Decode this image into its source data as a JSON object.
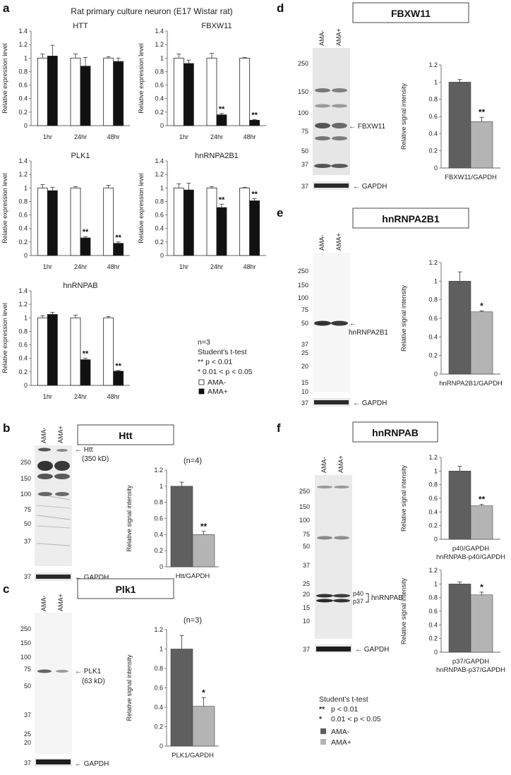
{
  "figure": {
    "panel_a_letter": "a",
    "panel_b_letter": "b",
    "panel_c_letter": "c",
    "panel_d_letter": "d",
    "panel_e_letter": "e",
    "panel_f_letter": "f",
    "panel_a_header": "Rat primary culture neuron (E17 Wistar rat)"
  },
  "legend_a": {
    "n": "n=3",
    "test": "Student's t-test",
    "sig1": "** p < 0.01",
    "sig2": "* 0.01 < p < 0.05",
    "minus": "AMA-",
    "plus": "AMA+"
  },
  "legend_f": {
    "test": "Student's t-test",
    "sig1_mark": "**",
    "sig1": "p < 0.01",
    "sig2_mark": "*",
    "sig2": "0.01 < p < 0.05",
    "minus": "AMA-",
    "plus": "AMA+"
  },
  "blots": {
    "b": {
      "title": "Htt",
      "lanes": [
        "AMA-",
        "AMA+"
      ],
      "markers": [
        "250",
        "150",
        "100",
        "75",
        "50",
        "37"
      ],
      "gapdh_marker": "37",
      "band_label": "Htt",
      "band_sub": "(350 kD)",
      "gapdh": "GAPDH"
    },
    "c": {
      "title": "Plk1",
      "lanes": [
        "AMA-",
        "AMA+"
      ],
      "markers": [
        "250",
        "150",
        "100",
        "75",
        "50",
        "37",
        "25",
        "20"
      ],
      "gapdh_marker": "37",
      "band_label": "PLK1",
      "band_sub": "(63 kD)",
      "gapdh": "GAPDH"
    },
    "d": {
      "title": "FBXW11",
      "lanes": [
        "AMA-",
        "AMA+"
      ],
      "markers": [
        "250",
        "150",
        "100",
        "75",
        "50",
        "37"
      ],
      "gapdh_marker": "37",
      "band_label": "FBXW11",
      "gapdh": "GAPDH"
    },
    "e": {
      "title": "hnRNPA2B1",
      "lanes": [
        "AMA-",
        "AMA+"
      ],
      "markers": [
        "250",
        "150",
        "100",
        "75",
        "50",
        "37",
        "25",
        "20",
        "15",
        "10"
      ],
      "gapdh_marker": "37",
      "band_label": "hnRNPA2B1",
      "gapdh": "GAPDH"
    },
    "f": {
      "title": "hnRNPAB",
      "lanes": [
        "AMA-",
        "AMA+"
      ],
      "markers": [
        "250",
        "150",
        "100",
        "75",
        "50",
        "37",
        "25",
        "20",
        "15",
        "10"
      ],
      "gapdh_marker": "37",
      "band_label": "hnRNPAB",
      "p40": "p40",
      "p37": "p37",
      "gapdh": "GAPDH"
    }
  },
  "chart_data": [
    {
      "id": "a-htt",
      "type": "bar",
      "title": "HTT",
      "ylabel": "Relative expression level",
      "ylim": [
        0,
        1.4
      ],
      "yticks": [
        "0",
        "0.2",
        "0.4",
        "0.6",
        "0.8",
        "1",
        "1.2",
        "1.4"
      ],
      "categories": [
        "1hr",
        "24hr",
        "48hr"
      ],
      "series": [
        {
          "name": "AMA-",
          "values": [
            1.0,
            1.0,
            1.0
          ],
          "errors": [
            0.06,
            0.06,
            0.02
          ]
        },
        {
          "name": "AMA+",
          "values": [
            1.03,
            0.88,
            0.95
          ],
          "errors": [
            0.16,
            0.13,
            0.05
          ]
        }
      ],
      "significance": [
        "",
        "",
        ""
      ]
    },
    {
      "id": "a-fbxw11",
      "type": "bar",
      "title": "FBXW11",
      "ylabel": "Relative expression level",
      "ylim": [
        0,
        1.4
      ],
      "yticks": [
        "0",
        "0.2",
        "0.4",
        "0.6",
        "0.8",
        "1",
        "1.2",
        "1.4"
      ],
      "categories": [
        "1hr",
        "24hr",
        "48hr"
      ],
      "series": [
        {
          "name": "AMA-",
          "values": [
            1.0,
            1.0,
            1.0
          ],
          "errors": [
            0.06,
            0.07,
            0.01
          ]
        },
        {
          "name": "AMA+",
          "values": [
            0.92,
            0.16,
            0.08
          ],
          "errors": [
            0.05,
            0.02,
            0.01
          ]
        }
      ],
      "significance": [
        "",
        "**",
        "**"
      ]
    },
    {
      "id": "a-plk1",
      "type": "bar",
      "title": "PLK1",
      "ylabel": "Relative expression level",
      "ylim": [
        0,
        1.4
      ],
      "yticks": [
        "0",
        "0.2",
        "0.4",
        "0.6",
        "0.8",
        "1",
        "1.2",
        "1.4"
      ],
      "categories": [
        "1hr",
        "24hr",
        "48hr"
      ],
      "series": [
        {
          "name": "AMA-",
          "values": [
            1.0,
            1.0,
            1.0
          ],
          "errors": [
            0.05,
            0.02,
            0.04
          ]
        },
        {
          "name": "AMA+",
          "values": [
            0.96,
            0.26,
            0.18
          ],
          "errors": [
            0.05,
            0.02,
            0.02
          ]
        }
      ],
      "significance": [
        "",
        "**",
        "**"
      ]
    },
    {
      "id": "a-hnrnpa2b1",
      "type": "bar",
      "title": "hnRNPA2B1",
      "ylabel": "Relative expression level",
      "ylim": [
        0,
        1.4
      ],
      "yticks": [
        "0",
        "0.2",
        "0.4",
        "0.6",
        "0.8",
        "1",
        "1.2",
        "1.4"
      ],
      "categories": [
        "1hr",
        "24hr",
        "48hr"
      ],
      "series": [
        {
          "name": "AMA-",
          "values": [
            1.0,
            1.0,
            1.0
          ],
          "errors": [
            0.06,
            0.02,
            0.01
          ]
        },
        {
          "name": "AMA+",
          "values": [
            0.97,
            0.71,
            0.81
          ],
          "errors": [
            0.1,
            0.05,
            0.03
          ]
        }
      ],
      "significance": [
        "",
        "**",
        "**"
      ]
    },
    {
      "id": "a-hnrnpab",
      "type": "bar",
      "title": "hnRNPAB",
      "ylabel": "Relative expression level",
      "ylim": [
        0,
        1.4
      ],
      "yticks": [
        "0",
        "0.2",
        "0.4",
        "0.6",
        "0.8",
        "1",
        "1.2",
        "1.4"
      ],
      "categories": [
        "1hr",
        "24hr",
        "48hr"
      ],
      "series": [
        {
          "name": "AMA-",
          "values": [
            1.0,
            1.0,
            1.0
          ],
          "errors": [
            0.03,
            0.04,
            0.02
          ]
        },
        {
          "name": "AMA+",
          "values": [
            1.05,
            0.38,
            0.21
          ],
          "errors": [
            0.03,
            0.02,
            0.01
          ]
        }
      ],
      "significance": [
        "",
        "**",
        "**"
      ]
    },
    {
      "id": "b-htt",
      "type": "bar",
      "title": "(n=4)",
      "ylabel": "Relative signal intensity",
      "xlabel": "Htt/GAPDH",
      "ylim": [
        0,
        1.2
      ],
      "yticks": [
        "0",
        "0.2",
        "0.4",
        "0.6",
        "0.8",
        "1",
        "1.2"
      ],
      "values": [
        1.0,
        0.4
      ],
      "errors": [
        0.05,
        0.04
      ],
      "colors": [
        "#5f5f5f",
        "#b4b4b4"
      ],
      "significance": [
        "",
        "**"
      ]
    },
    {
      "id": "c-plk1",
      "type": "bar",
      "title": "(n=3)",
      "ylabel": "Relative signal intensity",
      "xlabel": "PLK1/GAPDH",
      "ylim": [
        0,
        1.2
      ],
      "yticks": [
        "0",
        "0.2",
        "0.4",
        "0.6",
        "0.8",
        "1",
        "1.2"
      ],
      "values": [
        1.0,
        0.41
      ],
      "errors": [
        0.14,
        0.09
      ],
      "colors": [
        "#5f5f5f",
        "#b4b4b4"
      ],
      "significance": [
        "",
        "*"
      ]
    },
    {
      "id": "d-fbxw11",
      "type": "bar",
      "title": "",
      "ylabel": "Relative signal intensity",
      "xlabel": "FBXW11/GAPDH",
      "ylim": [
        0,
        1.2
      ],
      "yticks": [
        "0",
        "0.2",
        "0.4",
        "0.6",
        "0.8",
        "1",
        "1.2"
      ],
      "values": [
        1.0,
        0.54
      ],
      "errors": [
        0.03,
        0.05
      ],
      "colors": [
        "#5f5f5f",
        "#b4b4b4"
      ],
      "significance": [
        "",
        "**"
      ]
    },
    {
      "id": "e-hnrnpa2b1",
      "type": "bar",
      "title": "",
      "ylabel": "Relative signal intensity",
      "xlabel": "hnRNPA2B1/GAPDH",
      "ylim": [
        0,
        1.2
      ],
      "yticks": [
        "0",
        "0.2",
        "0.4",
        "0.6",
        "0.8",
        "1",
        "1.2"
      ],
      "values": [
        1.0,
        0.67
      ],
      "errors": [
        0.1,
        0.01
      ],
      "colors": [
        "#5f5f5f",
        "#b4b4b4"
      ],
      "significance": [
        "",
        "*"
      ]
    },
    {
      "id": "f-p40",
      "type": "bar",
      "title": "",
      "ylabel": "Relative signal intensity",
      "xlabel": "p40/GAPDH",
      "xlabel2": "hnRNPAB-p40/GAPDH",
      "ylim": [
        0,
        1.2
      ],
      "yticks": [
        "0",
        "0.2",
        "0.4",
        "0.6",
        "0.8",
        "1",
        "1.2"
      ],
      "values": [
        1.0,
        0.49
      ],
      "errors": [
        0.07,
        0.02
      ],
      "colors": [
        "#5f5f5f",
        "#b4b4b4"
      ],
      "significance": [
        "",
        "**"
      ]
    },
    {
      "id": "f-p37",
      "type": "bar",
      "title": "",
      "ylabel": "Relative signal intensity",
      "xlabel": "p37/GAPDH",
      "xlabel2": "hnRNPAB-p37/GAPDH",
      "ylim": [
        0,
        1.2
      ],
      "yticks": [
        "0",
        "0.2",
        "0.4",
        "0.6",
        "0.8",
        "1",
        "1.2"
      ],
      "values": [
        1.0,
        0.84
      ],
      "errors": [
        0.03,
        0.04
      ],
      "colors": [
        "#5f5f5f",
        "#b4b4b4"
      ],
      "significance": [
        "",
        "*"
      ]
    }
  ]
}
